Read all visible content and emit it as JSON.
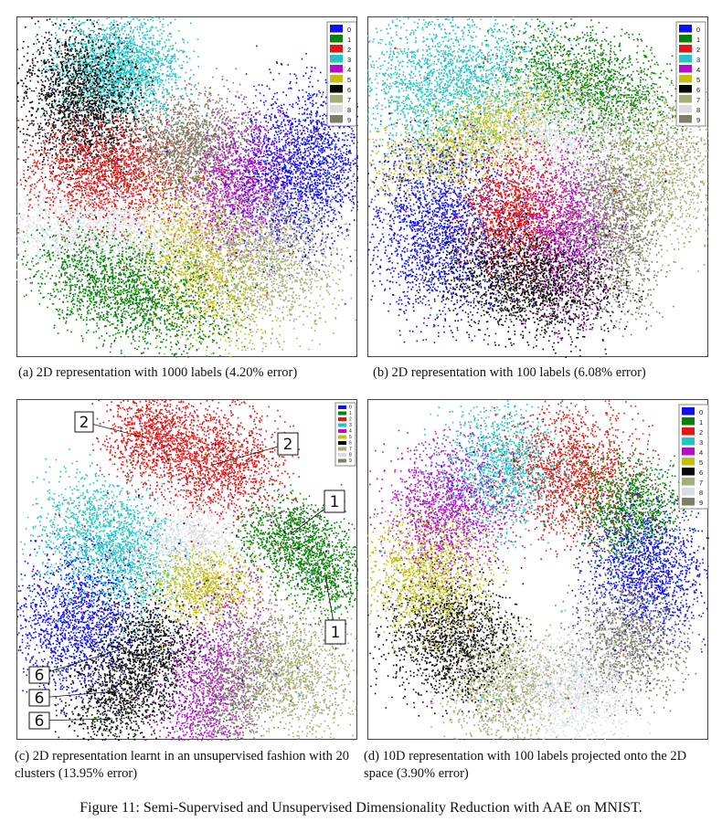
{
  "figure_caption": "Figure 11: Semi-Supervised and Unsupervised Dimensionality Reduction with AAE on MNIST.",
  "colors": {
    "0": "#1010ee",
    "1": "#0a7f0a",
    "2": "#e21616",
    "3": "#23c4c4",
    "4": "#b010c8",
    "5": "#c2c012",
    "6": "#080808",
    "7": "#a4ae78",
    "8": "#d8dde2",
    "9": "#7d7d68"
  },
  "panels": [
    {
      "caption": "(a)  2D representation with 1000 labels (4.20% error)",
      "legend": [
        "0",
        "1",
        "2",
        "3",
        "4",
        "5",
        "6",
        "7",
        "8",
        "9"
      ]
    },
    {
      "caption": "(b)  2D representation with 100 labels (6.08% error)",
      "legend": [
        "0",
        "1",
        "2",
        "3",
        "4",
        "5",
        "6",
        "7",
        "8",
        "9"
      ]
    },
    {
      "caption": "(c)  2D representation learnt in an unsupervised fashion with 20 clusters (13.95% error)",
      "legend": [
        "0",
        "1",
        "2",
        "3",
        "4",
        "5",
        "6",
        "7",
        "8",
        "9"
      ],
      "annotations": [
        "2",
        "2",
        "1",
        "1",
        "6",
        "6",
        "6"
      ]
    },
    {
      "caption": "(d)  10D representation with 100 labels projected onto the 2D space (3.90% error)",
      "legend": [
        "0",
        "1",
        "2",
        "3",
        "4",
        "5",
        "6",
        "7",
        "8",
        "9"
      ]
    }
  ]
}
